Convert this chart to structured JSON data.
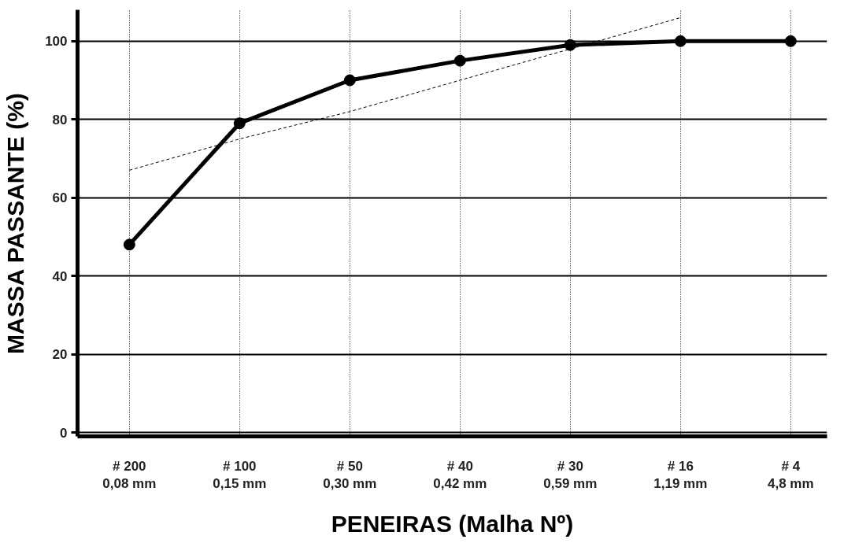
{
  "chart_data": {
    "type": "line",
    "xlabel": "PENEIRAS (Malha Nº)",
    "ylabel": "MASSA PASSANTE (%)",
    "categories": [
      "# 200\n0,08 mm",
      "# 100\n0,15 mm",
      "# 50\n0,30 mm",
      "# 40\n0,42 mm",
      "# 30\n0,59 mm",
      "# 16\n1,19 mm",
      "# 4\n4,8 mm"
    ],
    "series": [
      {
        "color": "#000000",
        "values": [
          48,
          79,
          90,
          95,
          99,
          100,
          100
        ],
        "marker": "circle",
        "line_style": "solid"
      },
      {
        "type": "line",
        "color": "#000000",
        "values": [
          67,
          75,
          82,
          90,
          98,
          106,
          null
        ],
        "marker": "none",
        "line_style": "dashed"
      }
    ],
    "ylim": [
      -1,
      108
    ],
    "yticks": [
      0,
      20,
      40,
      60,
      80,
      100
    ],
    "grid": true
  }
}
